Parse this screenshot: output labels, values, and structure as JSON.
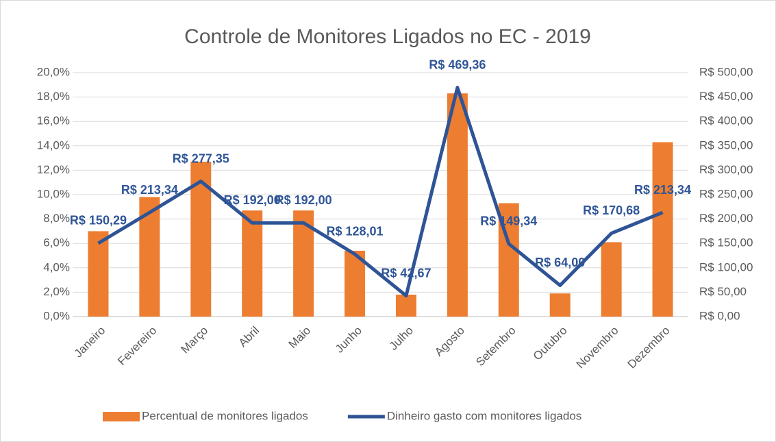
{
  "chart_data": {
    "type": "combo",
    "title": "Controle de Monitores Ligados no EC - 2019",
    "categories": [
      "Janeiro",
      "Fevereiro",
      "Março",
      "Abril",
      "Maio",
      "Junho",
      "Julho",
      "Agosto",
      "Setembro",
      "Outubro",
      "Novembro",
      "Dezembro"
    ],
    "series": [
      {
        "name": "Percentual de monitores ligados",
        "type": "bar",
        "axis": "y",
        "color": "#ed7d31",
        "values": [
          7.0,
          9.8,
          12.7,
          8.7,
          8.7,
          5.4,
          1.8,
          18.3,
          9.3,
          1.9,
          6.1,
          14.3
        ]
      },
      {
        "name": "Dinheiro gasto com monitores ligados",
        "type": "line",
        "axis": "y2",
        "color": "#2f5496",
        "values": [
          150.29,
          213.34,
          277.35,
          192.0,
          192.0,
          128.01,
          42.67,
          469.36,
          149.34,
          64.0,
          170.68,
          213.34
        ],
        "value_labels": [
          "R$ 150,29",
          "R$ 213,34",
          "R$ 277,35",
          "R$ 192,00",
          "R$ 192,00",
          "R$ 128,01",
          "R$ 42,67",
          "R$ 469,36",
          "R$ 149,34",
          "R$ 64,00",
          "R$ 170,68",
          "R$ 213,34"
        ]
      }
    ],
    "ylim": [
      0,
      20
    ],
    "yticks": [
      {
        "value": 0,
        "label": "0,0%"
      },
      {
        "value": 2,
        "label": "2,0%"
      },
      {
        "value": 4,
        "label": "4,0%"
      },
      {
        "value": 6,
        "label": "6,0%"
      },
      {
        "value": 8,
        "label": "8,0%"
      },
      {
        "value": 10,
        "label": "10,0%"
      },
      {
        "value": 12,
        "label": "12,0%"
      },
      {
        "value": 14,
        "label": "14,0%"
      },
      {
        "value": 16,
        "label": "16,0%"
      },
      {
        "value": 18,
        "label": "18,0%"
      },
      {
        "value": 20,
        "label": "20,0%"
      }
    ],
    "y2lim": [
      0,
      500
    ],
    "y2ticks": [
      {
        "value": 0,
        "label": "R$ 0,00"
      },
      {
        "value": 50,
        "label": "R$ 50,00"
      },
      {
        "value": 100,
        "label": "R$ 100,00"
      },
      {
        "value": 150,
        "label": "R$ 150,00"
      },
      {
        "value": 200,
        "label": "R$ 200,00"
      },
      {
        "value": 250,
        "label": "R$ 250,00"
      },
      {
        "value": 300,
        "label": "R$ 300,00"
      },
      {
        "value": 350,
        "label": "R$ 350,00"
      },
      {
        "value": 400,
        "label": "R$ 400,00"
      },
      {
        "value": 450,
        "label": "R$ 450,00"
      },
      {
        "value": 500,
        "label": "R$ 500,00"
      }
    ],
    "grid": true,
    "legend": "bottom"
  }
}
